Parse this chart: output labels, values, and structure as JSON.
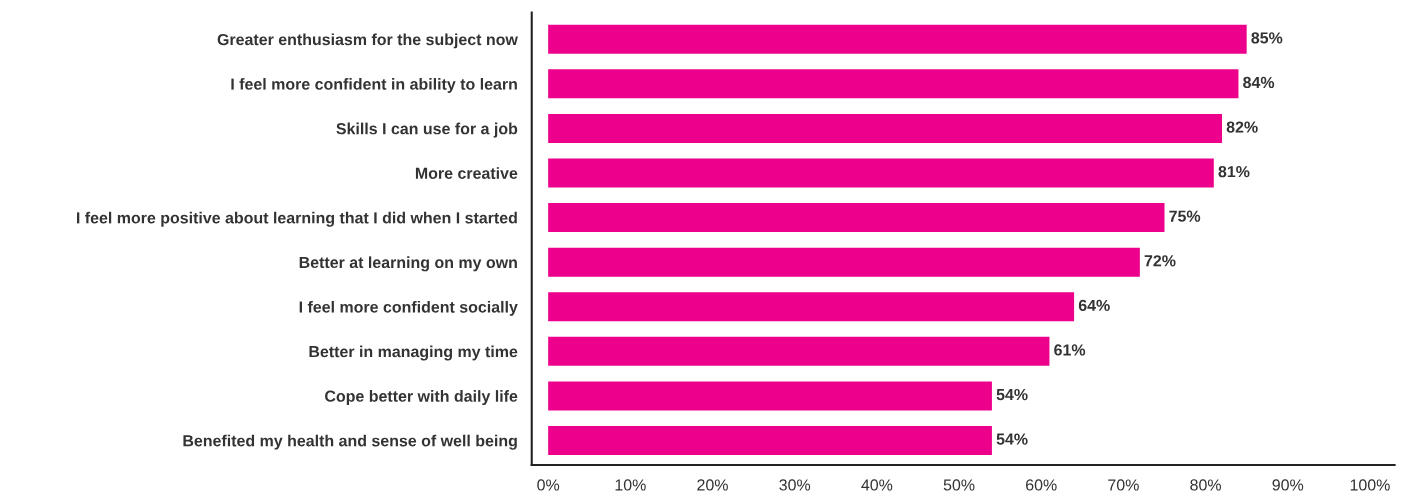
{
  "chart_data": {
    "type": "bar",
    "orientation": "horizontal",
    "categories": [
      "Greater enthusiasm for the subject now",
      "I feel more confident in ability to learn",
      "Skills I can use for a job",
      "More creative",
      "I feel more positive about learning that I did when I started",
      "Better at learning on my own",
      "I feel more confident socially",
      "Better in managing my time",
      "Cope better with daily life",
      "Benefited my health and sense of well being"
    ],
    "values": [
      85,
      84,
      82,
      81,
      75,
      72,
      64,
      61,
      54,
      54
    ],
    "value_labels": [
      "85%",
      "84%",
      "82%",
      "81%",
      "75%",
      "72%",
      "64%",
      "61%",
      "54%",
      "54%"
    ],
    "color": "#ec008c",
    "xlim": [
      -2,
      103
    ],
    "xticks": [
      {
        "value": 0,
        "label": "0%"
      },
      {
        "value": 10,
        "label": "10%"
      },
      {
        "value": 20,
        "label": "20%"
      },
      {
        "value": 30,
        "label": "30%"
      },
      {
        "value": 40,
        "label": "40%"
      },
      {
        "value": 50,
        "label": "50%"
      },
      {
        "value": 60,
        "label": "60%"
      },
      {
        "value": 70,
        "label": "70%"
      },
      {
        "value": 80,
        "label": "80%"
      },
      {
        "value": 90,
        "label": "90%"
      },
      {
        "value": 100,
        "label": "100%"
      }
    ],
    "grid": false,
    "legend": false
  }
}
